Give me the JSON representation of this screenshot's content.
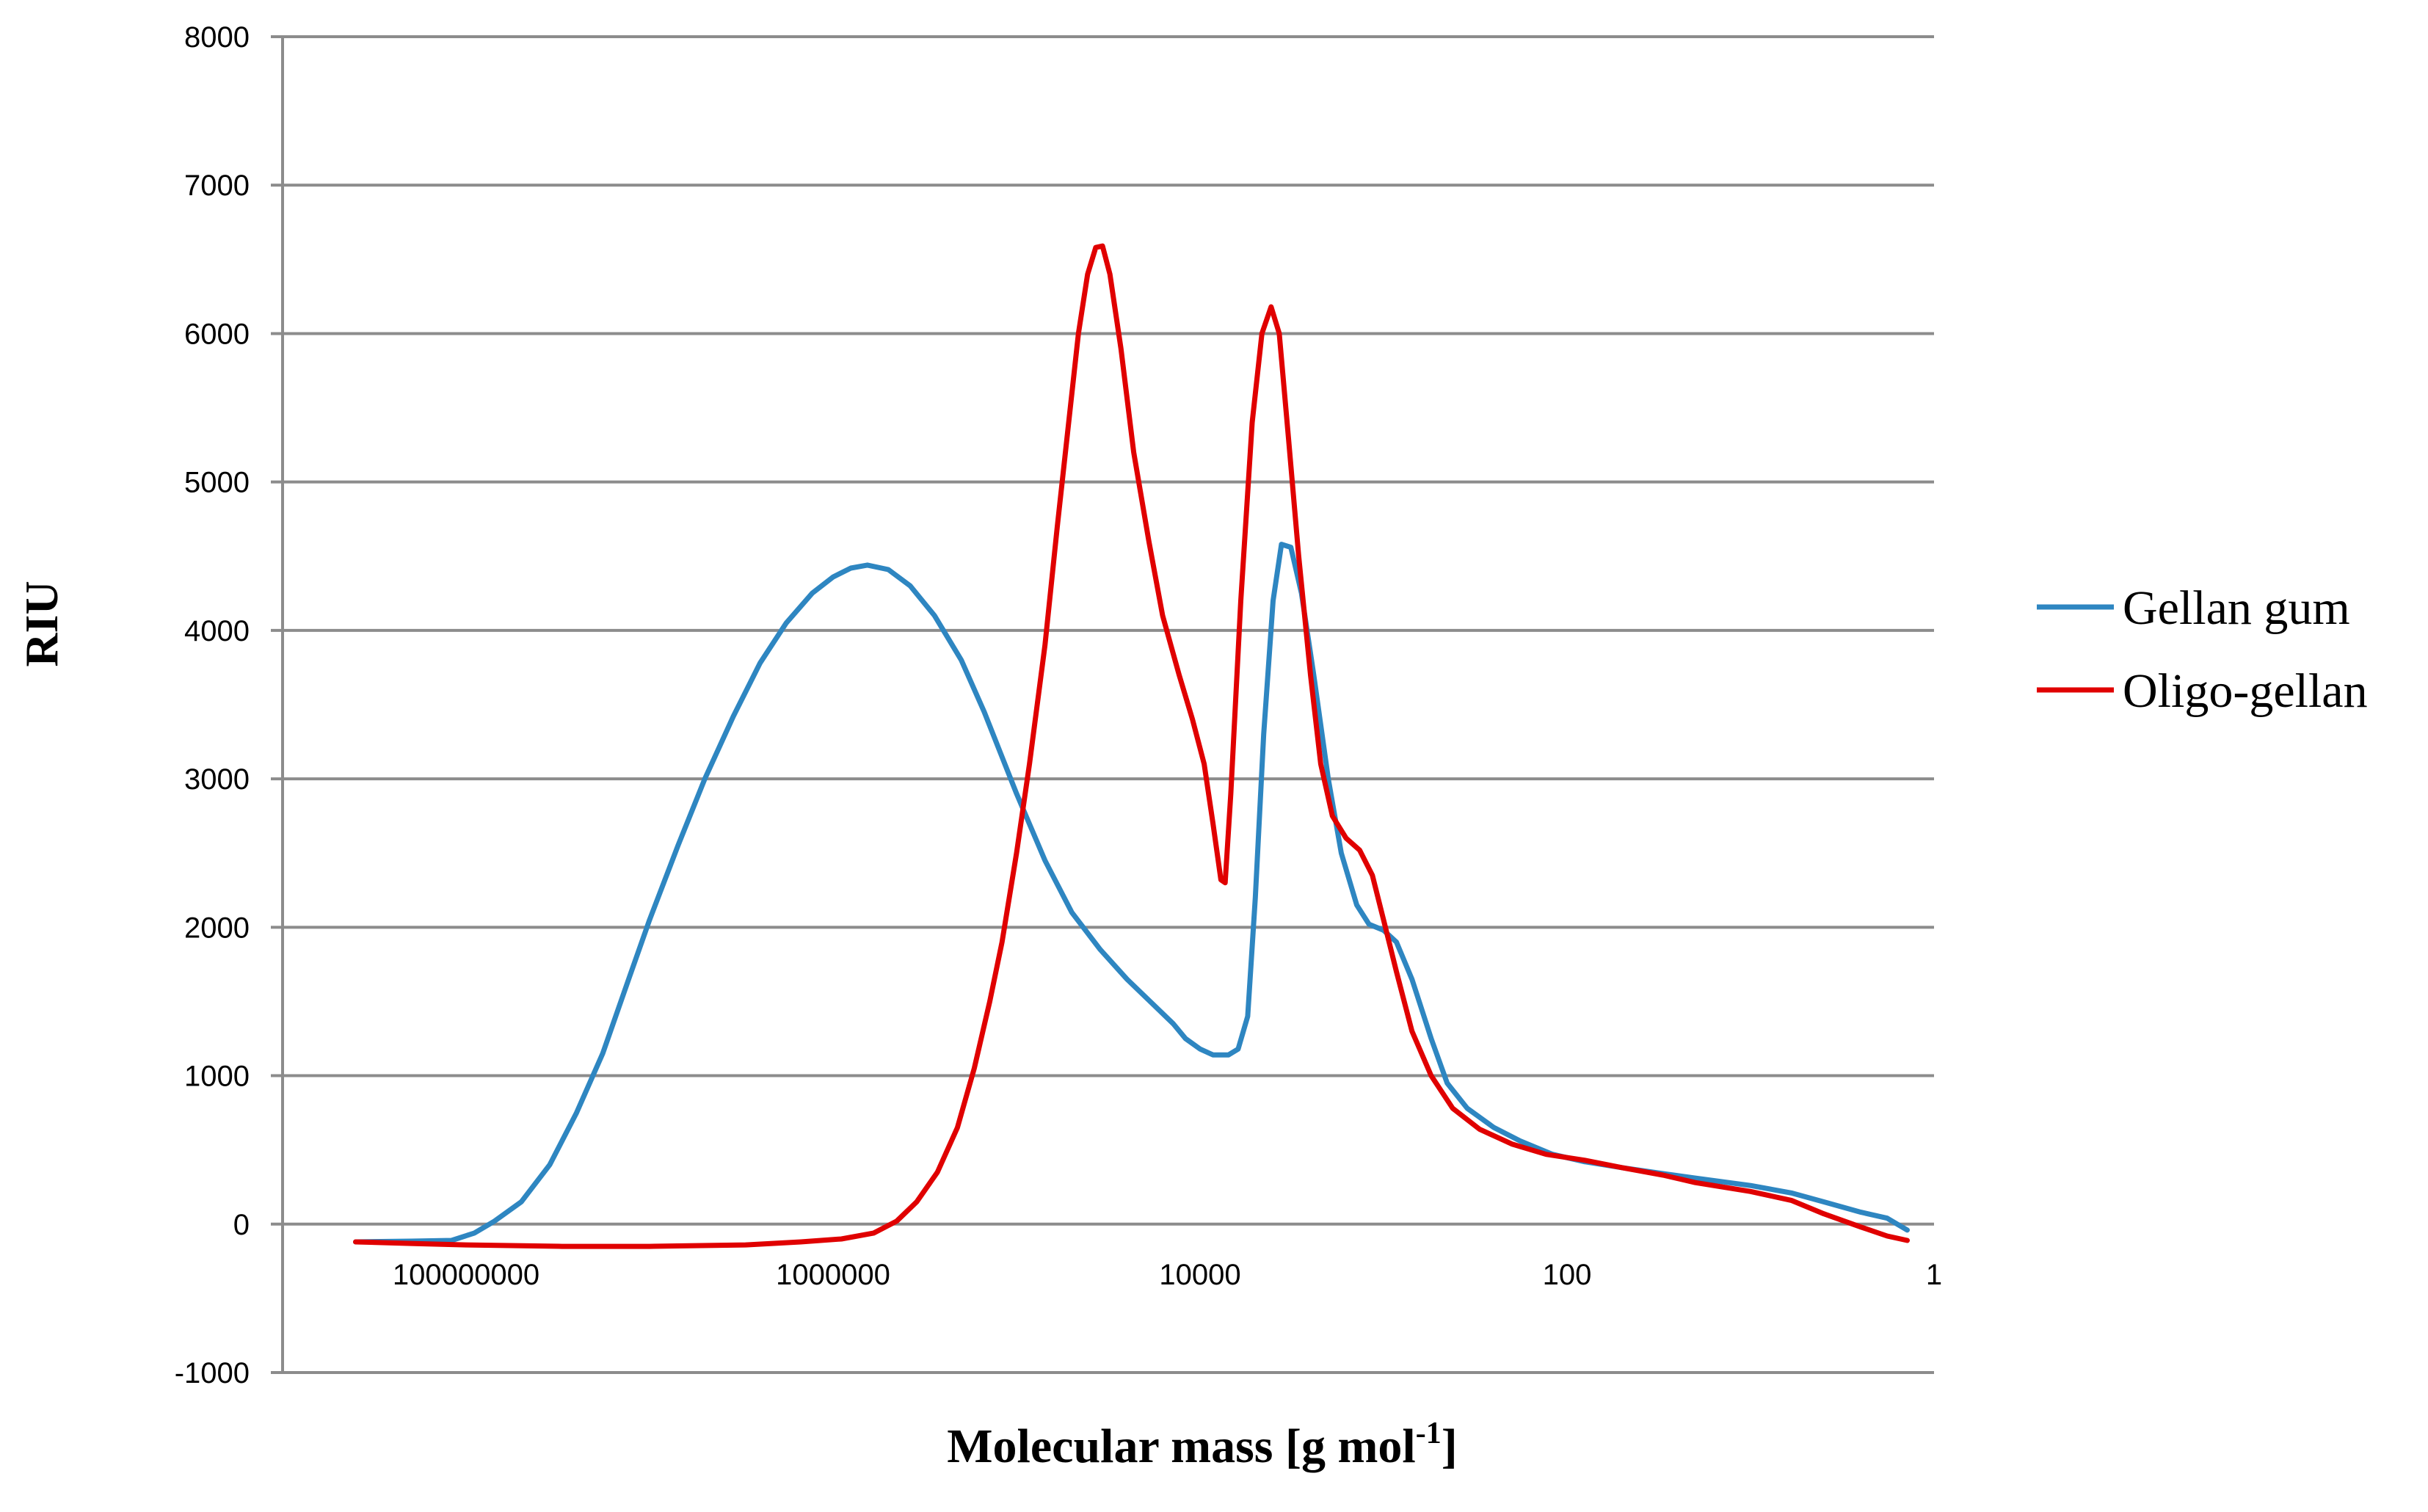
{
  "chart_data": {
    "type": "line",
    "title": "",
    "xlabel": "Molecular mass [g mol",
    "xlabel_sup": "-1",
    "xlabel_end": "]",
    "ylabel": "RIU",
    "x_scale": "log",
    "x_reversed": true,
    "xlim": [
      1,
      1000000000
    ],
    "ylim": [
      -1000,
      8000
    ],
    "y_ticks": [
      -1000,
      0,
      1000,
      2000,
      3000,
      4000,
      5000,
      6000,
      7000,
      8000
    ],
    "x_ticks": [
      {
        "value": 100000000,
        "label": "100000000"
      },
      {
        "value": 1000000,
        "label": "1000000"
      },
      {
        "value": 10000,
        "label": "10000"
      },
      {
        "value": 100,
        "label": "100"
      },
      {
        "value": 1,
        "label": "1"
      }
    ],
    "grid": true,
    "legend_position": "right",
    "series": [
      {
        "name": "Gellan gum",
        "color": "#2e86c1",
        "points": [
          [
            400000000,
            -120
          ],
          [
            200000000,
            -115
          ],
          [
            120000000,
            -110
          ],
          [
            90000000,
            -60
          ],
          [
            70000000,
            20
          ],
          [
            50000000,
            150
          ],
          [
            35000000,
            400
          ],
          [
            25000000,
            750
          ],
          [
            18000000,
            1150
          ],
          [
            13000000,
            1650
          ],
          [
            10000000,
            2050
          ],
          [
            7000000,
            2550
          ],
          [
            5000000,
            3000
          ],
          [
            3500000,
            3420
          ],
          [
            2500000,
            3780
          ],
          [
            1800000,
            4050
          ],
          [
            1300000,
            4250
          ],
          [
            1000000,
            4360
          ],
          [
            800000,
            4420
          ],
          [
            650000,
            4440
          ],
          [
            500000,
            4410
          ],
          [
            380000,
            4300
          ],
          [
            280000,
            4100
          ],
          [
            200000,
            3800
          ],
          [
            150000,
            3450
          ],
          [
            100000,
            2900
          ],
          [
            70000,
            2450
          ],
          [
            50000,
            2100
          ],
          [
            35000,
            1850
          ],
          [
            25000,
            1650
          ],
          [
            18000,
            1480
          ],
          [
            14000,
            1350
          ],
          [
            12000,
            1250
          ],
          [
            10000,
            1180
          ],
          [
            8500,
            1140
          ],
          [
            7000,
            1140
          ],
          [
            6200,
            1180
          ],
          [
            5500,
            1400
          ],
          [
            5000,
            2200
          ],
          [
            4500,
            3300
          ],
          [
            4000,
            4200
          ],
          [
            3600,
            4580
          ],
          [
            3200,
            4560
          ],
          [
            2800,
            4250
          ],
          [
            2400,
            3700
          ],
          [
            2000,
            3000
          ],
          [
            1700,
            2500
          ],
          [
            1400,
            2150
          ],
          [
            1200,
            2020
          ],
          [
            1000,
            1980
          ],
          [
            850,
            1900
          ],
          [
            700,
            1650
          ],
          [
            550,
            1250
          ],
          [
            450,
            950
          ],
          [
            350,
            780
          ],
          [
            250,
            650
          ],
          [
            180,
            560
          ],
          [
            120,
            470
          ],
          [
            80,
            420
          ],
          [
            50,
            380
          ],
          [
            30,
            340
          ],
          [
            20,
            310
          ],
          [
            10,
            260
          ],
          [
            6,
            210
          ],
          [
            4,
            150
          ],
          [
            2.5,
            80
          ],
          [
            1.8,
            40
          ],
          [
            1.4,
            -40
          ]
        ]
      },
      {
        "name": "Oligo-gellan",
        "color": "#e00000",
        "points": [
          [
            400000000,
            -120
          ],
          [
            200000000,
            -130
          ],
          [
            100000000,
            -140
          ],
          [
            30000000,
            -150
          ],
          [
            10000000,
            -150
          ],
          [
            3000000,
            -140
          ],
          [
            1500000,
            -120
          ],
          [
            900000,
            -100
          ],
          [
            600000,
            -60
          ],
          [
            450000,
            20
          ],
          [
            350000,
            150
          ],
          [
            270000,
            350
          ],
          [
            210000,
            650
          ],
          [
            170000,
            1050
          ],
          [
            140000,
            1500
          ],
          [
            120000,
            1900
          ],
          [
            100000,
            2500
          ],
          [
            85000,
            3100
          ],
          [
            70000,
            3900
          ],
          [
            60000,
            4700
          ],
          [
            52000,
            5400
          ],
          [
            46000,
            6000
          ],
          [
            41000,
            6400
          ],
          [
            37000,
            6580
          ],
          [
            34000,
            6590
          ],
          [
            31000,
            6400
          ],
          [
            27000,
            5900
          ],
          [
            23000,
            5200
          ],
          [
            19000,
            4600
          ],
          [
            16000,
            4100
          ],
          [
            13000,
            3700
          ],
          [
            11000,
            3400
          ],
          [
            9500,
            3100
          ],
          [
            8500,
            2700
          ],
          [
            7700,
            2320
          ],
          [
            7300,
            2300
          ],
          [
            6800,
            2900
          ],
          [
            6000,
            4200
          ],
          [
            5200,
            5400
          ],
          [
            4600,
            6000
          ],
          [
            4100,
            6180
          ],
          [
            3700,
            6000
          ],
          [
            3300,
            5300
          ],
          [
            2900,
            4500
          ],
          [
            2500,
            3700
          ],
          [
            2200,
            3100
          ],
          [
            1900,
            2750
          ],
          [
            1600,
            2600
          ],
          [
            1350,
            2520
          ],
          [
            1150,
            2350
          ],
          [
            1000,
            2050
          ],
          [
            850,
            1700
          ],
          [
            700,
            1300
          ],
          [
            550,
            1000
          ],
          [
            420,
            780
          ],
          [
            300,
            640
          ],
          [
            200,
            540
          ],
          [
            130,
            470
          ],
          [
            80,
            430
          ],
          [
            50,
            380
          ],
          [
            30,
            330
          ],
          [
            20,
            280
          ],
          [
            10,
            220
          ],
          [
            6,
            160
          ],
          [
            4,
            70
          ],
          [
            2.5,
            -20
          ],
          [
            1.8,
            -80
          ],
          [
            1.4,
            -110
          ]
        ]
      }
    ]
  }
}
